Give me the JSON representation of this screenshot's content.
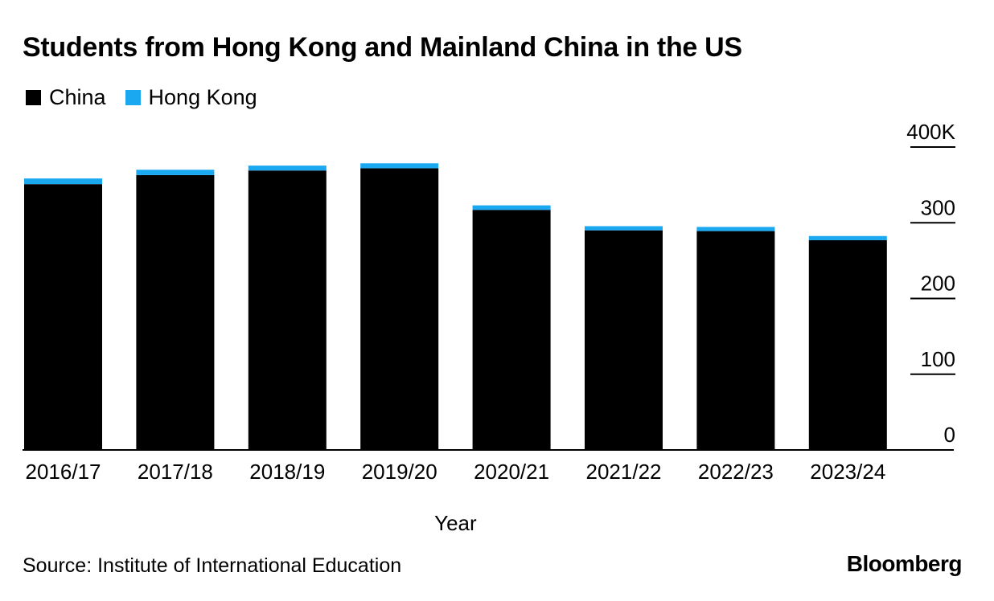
{
  "colors": {
    "china": "#000000",
    "hong_kong": "#1aa8f0",
    "axis": "#000000",
    "text": "#000000"
  },
  "chart_data": {
    "type": "bar",
    "stacked": true,
    "title": "Students from Hong Kong and Mainland China in the US",
    "xlabel": "Year",
    "ylabel": "",
    "ylim": [
      0,
      400
    ],
    "y_unit_suffix": "K",
    "y_ticks": [
      0,
      100,
      200,
      300,
      400
    ],
    "y_tick_labels": [
      "0",
      "100",
      "200",
      "300",
      "400K"
    ],
    "legend_position": "top-left",
    "categories": [
      "2016/17",
      "2017/18",
      "2018/19",
      "2019/20",
      "2020/21",
      "2021/22",
      "2022/23",
      "2023/24"
    ],
    "series": [
      {
        "name": "China",
        "color": "#000000",
        "values": [
          351,
          363,
          369,
          372,
          317,
          290,
          289,
          277
        ]
      },
      {
        "name": "Hong Kong",
        "color": "#1aa8f0",
        "values": [
          7.5,
          7,
          6.5,
          6.5,
          6,
          5.5,
          5.5,
          5.5
        ]
      }
    ]
  },
  "legend": [
    {
      "label": "China",
      "color": "#000000"
    },
    {
      "label": "Hong Kong",
      "color": "#1aa8f0"
    }
  ],
  "source": "Source: Institute of International Education",
  "brand": "Bloomberg"
}
